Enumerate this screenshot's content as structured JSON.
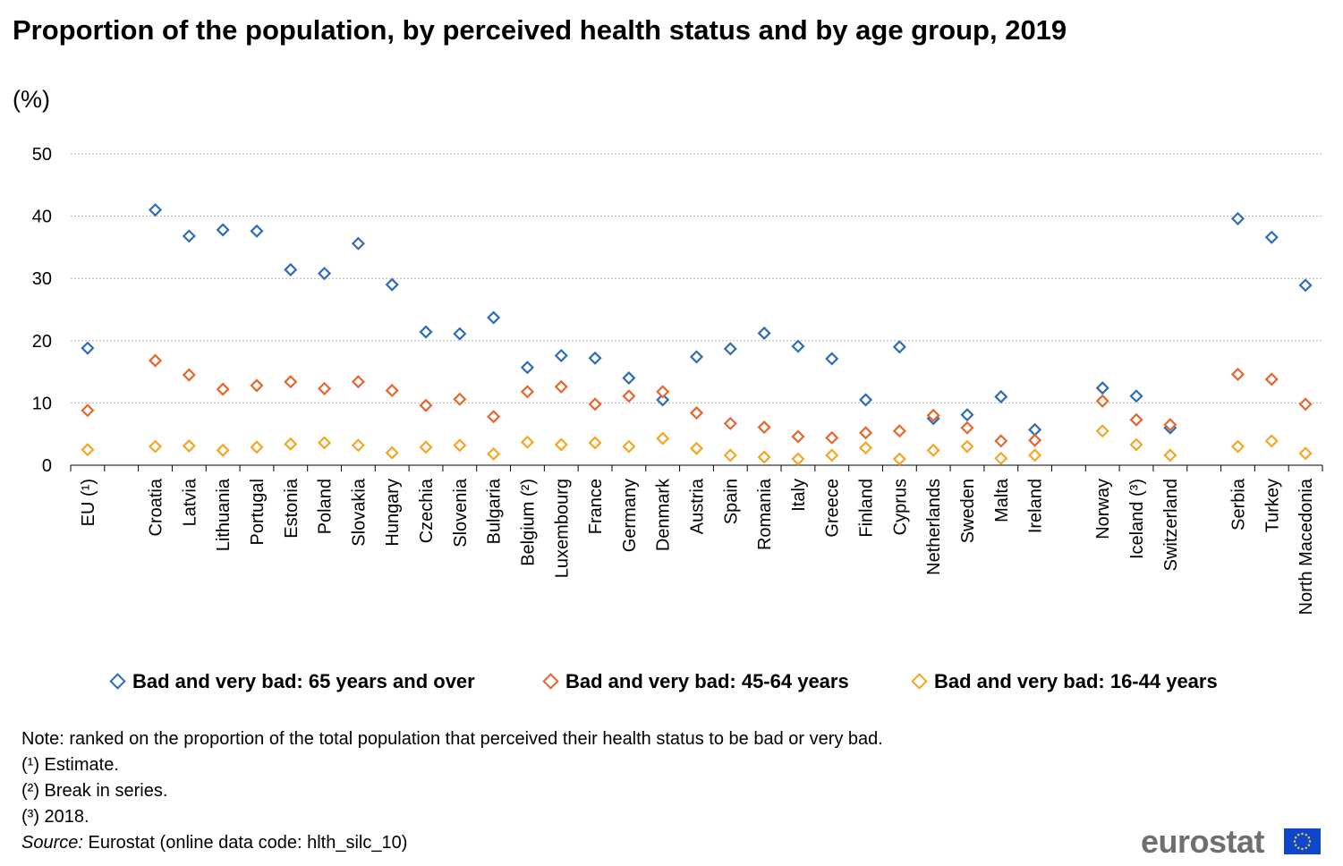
{
  "title": "Proportion of the population, by perceived health status and by age group, 2019",
  "unit": "(%)",
  "chart_data": {
    "type": "scatter",
    "categories": [
      "EU (¹)",
      "Croatia",
      "Latvia",
      "Lithuania",
      "Portugal",
      "Estonia",
      "Poland",
      "Slovakia",
      "Hungary",
      "Czechia",
      "Slovenia",
      "Bulgaria",
      "Belgium (²)",
      "Luxembourg",
      "France",
      "Germany",
      "Denmark",
      "Austria",
      "Spain",
      "Romania",
      "Italy",
      "Greece",
      "Finland",
      "Cyprus",
      "Netherlands",
      "Sweden",
      "Malta",
      "Ireland",
      "Norway",
      "Iceland (³)",
      "Switzerland",
      "Serbia",
      "Turkey",
      "North Macedonia"
    ],
    "series": [
      {
        "name": "Bad and very bad: 65 years and over",
        "color": "#2e6db4",
        "values": [
          18.8,
          41.0,
          36.8,
          37.8,
          37.6,
          31.4,
          30.8,
          35.6,
          29.0,
          21.4,
          21.1,
          23.7,
          15.7,
          17.6,
          17.2,
          14.0,
          10.5,
          17.4,
          18.7,
          21.2,
          19.1,
          17.1,
          10.5,
          19.0,
          7.5,
          8.1,
          11.0,
          5.7,
          12.4,
          11.1,
          6.0,
          39.6,
          36.6,
          28.9
        ]
      },
      {
        "name": "Bad and very bad: 45-64 years",
        "color": "#e4682e",
        "values": [
          8.8,
          16.8,
          14.5,
          12.2,
          12.8,
          13.4,
          12.3,
          13.4,
          12.0,
          9.6,
          10.6,
          7.8,
          11.8,
          12.6,
          9.8,
          11.1,
          11.8,
          8.4,
          6.7,
          6.1,
          4.6,
          4.4,
          5.2,
          5.5,
          8.0,
          6.0,
          3.9,
          4.0,
          10.3,
          7.3,
          6.5,
          14.6,
          13.8,
          9.8
        ]
      },
      {
        "name": "Bad and very bad: 16-44 years",
        "color": "#f5a623",
        "values": [
          2.5,
          3.0,
          3.1,
          2.4,
          2.9,
          3.4,
          3.6,
          3.2,
          2.0,
          2.9,
          3.2,
          1.8,
          3.7,
          3.3,
          3.6,
          3.0,
          4.3,
          2.7,
          1.6,
          1.3,
          1.0,
          1.6,
          2.8,
          1.0,
          2.4,
          3.0,
          1.1,
          1.6,
          5.5,
          3.3,
          1.6,
          3.0,
          3.9,
          1.9
        ]
      }
    ],
    "ylim": [
      0,
      50
    ],
    "yticks": [
      0,
      10,
      20,
      30,
      40,
      50
    ],
    "grid": true,
    "legend_position": "bottom"
  },
  "notes": {
    "note": "Note: ranked on the proportion of the total population that perceived their health status to be bad or very bad.",
    "fn1": "(¹) Estimate.",
    "fn2": "(²) Break in series.",
    "fn3": "(³) 2018.",
    "source_label": "Source:",
    "source_text": " Eurostat (online data code: hlth_silc_10)"
  },
  "logo": "eurostat"
}
